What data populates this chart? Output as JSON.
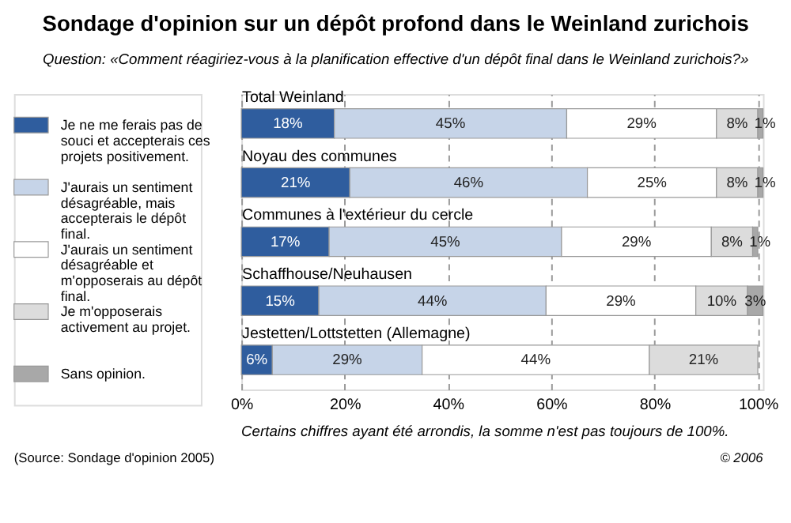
{
  "chart_data": {
    "type": "bar",
    "orientation": "horizontal",
    "stacked": true,
    "title": "Sondage d'opinion sur un dépôt profond dans le Weinland zurichois",
    "subtitle": "Question: «Comment réagiriez-vous à la planification effective d'un dépôt final dans le Weinland zurichois?»",
    "categories": [
      "Total Weinland",
      "Noyau des communes",
      "Communes à l'extérieur du cercle",
      "Schaffhouse/Neuhausen",
      "Jestetten/Lottstetten (Allemagne)"
    ],
    "series": [
      {
        "name": "Je ne me ferais pas de souci et accepterais ces projets positivement.",
        "color": "#2f5d9e",
        "values": [
          18,
          21,
          17,
          15,
          6
        ],
        "value_labels": [
          "18%",
          "21%",
          "17%",
          "15%",
          "6%"
        ]
      },
      {
        "name": "J'aurais un sentiment désagréable, mais accepterais le dépôt final.",
        "color": "#c6d4e8",
        "values": [
          45,
          46,
          45,
          44,
          29
        ],
        "value_labels": [
          "45%",
          "46%",
          "45%",
          "44%",
          "29%"
        ]
      },
      {
        "name": "J'aurais un sentiment désagréable et m'opposerais au dépôt final.",
        "color": "#ffffff",
        "values": [
          29,
          25,
          29,
          29,
          44
        ],
        "value_labels": [
          "29%",
          "25%",
          "29%",
          "29%",
          "44%"
        ]
      },
      {
        "name": "Je m'opposerais activement au projet.",
        "color": "#dcdcdc",
        "values": [
          8,
          8,
          8,
          10,
          21
        ],
        "value_labels": [
          "8%",
          "8%",
          "8%",
          "10%",
          "21%"
        ]
      },
      {
        "name": "Sans opinion.",
        "color": "#a8a8a8",
        "values": [
          1,
          1,
          1,
          3,
          null
        ],
        "value_labels": [
          "1%",
          "1%",
          "1%",
          "3%",
          null
        ]
      }
    ],
    "xlim": [
      0,
      101
    ],
    "xticks": [
      {
        "value": 0,
        "label": "0%"
      },
      {
        "value": 20,
        "label": "20%"
      },
      {
        "value": 40,
        "label": "40%"
      },
      {
        "value": 60,
        "label": "60%"
      },
      {
        "value": 80,
        "label": "80%"
      },
      {
        "value": 100,
        "label": "100%"
      }
    ],
    "grid": "x",
    "legend": "left",
    "annotations": [
      "Certains chiffres ayant été arrondis, la somme n'est pas toujours de 100%.",
      "(Source: Sondage d'opinion 2005)",
      "© 2006"
    ]
  }
}
